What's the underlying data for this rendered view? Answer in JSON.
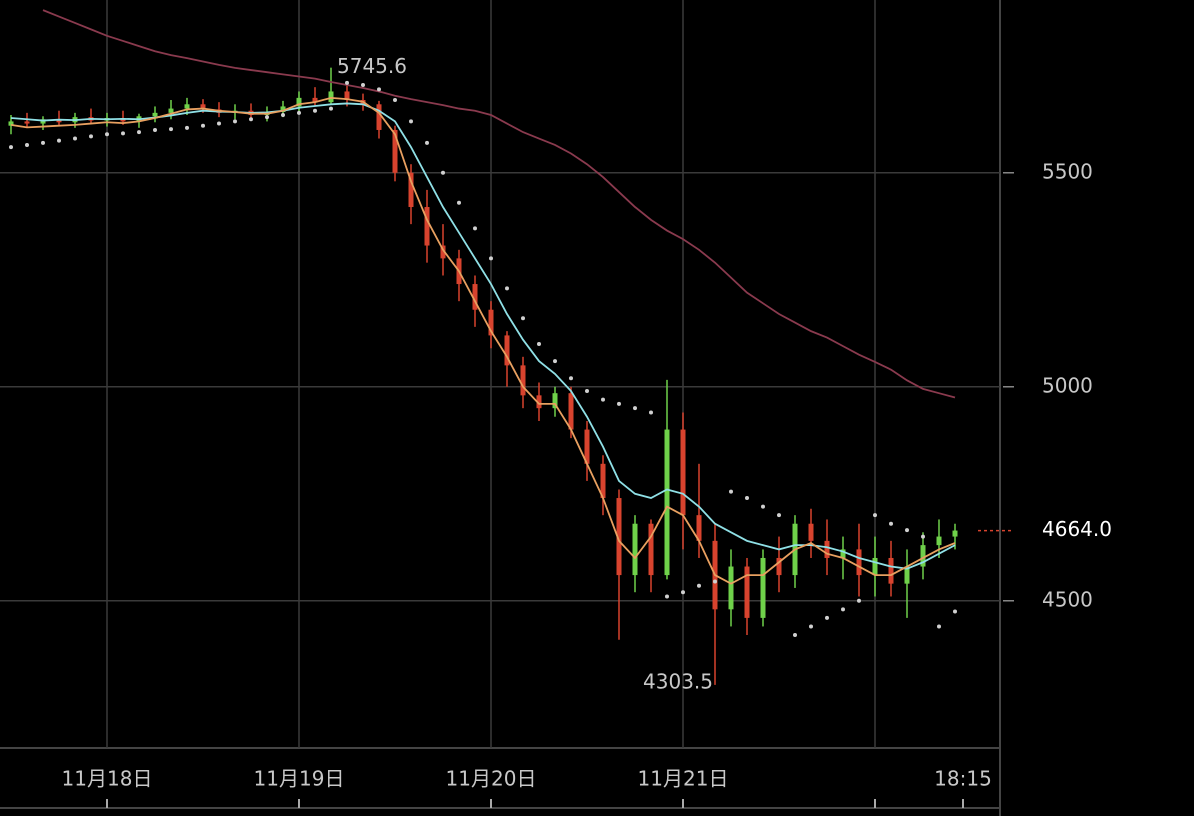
{
  "chart_data": {
    "type": "candlestick",
    "x": [
      -12,
      -10,
      -8,
      -6,
      -4,
      -2,
      0,
      2,
      4,
      6,
      8,
      10,
      12,
      14,
      16,
      18,
      20,
      22,
      24,
      26,
      28,
      30,
      32,
      34,
      36,
      38,
      40,
      42,
      44,
      46,
      48,
      50,
      52,
      54,
      56,
      58,
      60,
      62,
      64,
      66,
      68,
      70,
      72,
      74,
      76,
      78,
      80,
      82,
      84,
      86,
      88,
      90,
      92,
      94,
      96,
      98,
      100,
      102,
      104,
      106
    ],
    "open": [
      5610,
      5620,
      5615,
      5625,
      5618,
      5630,
      5622,
      5628,
      5620,
      5632,
      5640,
      5650,
      5660,
      5648,
      5640,
      5645,
      5635,
      5642,
      5655,
      5675,
      5665,
      5690,
      5670,
      5660,
      5600,
      5500,
      5420,
      5330,
      5300,
      5240,
      5180,
      5120,
      5050,
      4980,
      4950,
      4985,
      4900,
      4820,
      4740,
      4560,
      4680,
      4560,
      4900,
      4700,
      4640,
      4480,
      4580,
      4460,
      4600,
      4560,
      4680,
      4640,
      4600,
      4620,
      4560,
      4600,
      4540,
      4580,
      4630,
      4650
    ],
    "high": [
      5635,
      5640,
      5632,
      5645,
      5640,
      5650,
      5640,
      5645,
      5638,
      5655,
      5670,
      5675,
      5672,
      5665,
      5660,
      5662,
      5655,
      5668,
      5690,
      5700,
      5745.6,
      5705,
      5685,
      5668,
      5610,
      5520,
      5460,
      5380,
      5320,
      5260,
      5200,
      5130,
      5070,
      5010,
      5000,
      5000,
      4920,
      4840,
      4760,
      4700,
      4690,
      5016,
      4940,
      4820,
      4680,
      4620,
      4600,
      4620,
      4650,
      4700,
      4715,
      4690,
      4650,
      4680,
      4650,
      4640,
      4620,
      4660,
      4690,
      4680
    ],
    "low": [
      5590,
      5605,
      5600,
      5610,
      5605,
      5615,
      5608,
      5612,
      5605,
      5618,
      5625,
      5635,
      5640,
      5630,
      5625,
      5628,
      5620,
      5630,
      5640,
      5655,
      5660,
      5655,
      5645,
      5580,
      5480,
      5380,
      5290,
      5260,
      5200,
      5140,
      5090,
      5000,
      4950,
      4920,
      4930,
      4880,
      4780,
      4700,
      4409,
      4520,
      4520,
      4550,
      4620,
      4600,
      4303.5,
      4440,
      4420,
      4440,
      4520,
      4530,
      4600,
      4560,
      4550,
      4510,
      4510,
      4510,
      4460,
      4550,
      4600,
      4620
    ],
    "close": [
      5620,
      5615,
      5625,
      5618,
      5630,
      5622,
      5628,
      5620,
      5632,
      5640,
      5650,
      5660,
      5648,
      5640,
      5645,
      5635,
      5642,
      5655,
      5675,
      5665,
      5690,
      5670,
      5660,
      5600,
      5500,
      5420,
      5330,
      5300,
      5240,
      5180,
      5120,
      5050,
      4980,
      4950,
      4985,
      4900,
      4820,
      4740,
      4560,
      4680,
      4560,
      4900,
      4700,
      4640,
      4480,
      4580,
      4460,
      4600,
      4560,
      4680,
      4640,
      4600,
      4620,
      4560,
      4600,
      4540,
      4580,
      4630,
      4650,
      4664
    ],
    "up_color": "#6fd14a",
    "down_color": "#d8432e",
    "series": [
      {
        "color": "#8a3a4e",
        "style": "line",
        "values": [
          null,
          null,
          5880,
          5865,
          5850,
          5835,
          5820,
          5808,
          5796,
          5784,
          5775,
          5768,
          5760,
          5752,
          5745,
          5740,
          5735,
          5730,
          5725,
          5720,
          5712,
          5705,
          5698,
          5690,
          5680,
          5672,
          5665,
          5658,
          5650,
          5645,
          5635,
          5615,
          5595,
          5580,
          5565,
          5545,
          5520,
          5490,
          5455,
          5420,
          5390,
          5365,
          5345,
          5320,
          5290,
          5255,
          5220,
          5195,
          5170,
          5150,
          5130,
          5115,
          5095,
          5075,
          5058,
          5040,
          5015,
          4995,
          4985,
          4975
        ]
      },
      {
        "color": "#8fe0e6",
        "style": "line",
        "values": [
          5628,
          5625,
          5622,
          5624,
          5623,
          5626,
          5625,
          5626,
          5625,
          5629,
          5634,
          5640,
          5645,
          5643,
          5642,
          5640,
          5641,
          5645,
          5652,
          5656,
          5660,
          5662,
          5660,
          5645,
          5620,
          5560,
          5490,
          5420,
          5360,
          5300,
          5240,
          5170,
          5110,
          5060,
          5030,
          4990,
          4930,
          4860,
          4780,
          4750,
          4740,
          4760,
          4750,
          4720,
          4680,
          4660,
          4640,
          4630,
          4620,
          4630,
          4630,
          4625,
          4615,
          4600,
          4590,
          4580,
          4575,
          4590,
          4610,
          4630
        ]
      },
      {
        "color": "#e8a060",
        "style": "line",
        "values": [
          5612,
          5606,
          5608,
          5610,
          5612,
          5615,
          5618,
          5616,
          5620,
          5628,
          5638,
          5648,
          5650,
          5645,
          5642,
          5638,
          5638,
          5645,
          5660,
          5665,
          5675,
          5672,
          5666,
          5640,
          5590,
          5480,
          5390,
          5320,
          5270,
          5200,
          5130,
          5070,
          5000,
          4960,
          4960,
          4900,
          4820,
          4740,
          4640,
          4600,
          4650,
          4720,
          4700,
          4640,
          4560,
          4540,
          4560,
          4560,
          4590,
          4620,
          4635,
          4610,
          4600,
          4580,
          4560,
          4560,
          4580,
          4600,
          4620,
          4635
        ]
      },
      {
        "color": "#d0d0d0",
        "style": "dots",
        "values": [
          5560,
          5565,
          5570,
          5575,
          5580,
          5585,
          5590,
          5592,
          5595,
          5600,
          5602,
          5605,
          5610,
          5615,
          5620,
          5625,
          5630,
          5635,
          5640,
          5645,
          5650,
          5710,
          5705,
          5695,
          5670,
          5620,
          5570,
          5500,
          5430,
          5370,
          5300,
          5230,
          5160,
          5100,
          5060,
          5020,
          4990,
          4970,
          4960,
          4950,
          4940,
          4510,
          4520,
          4535,
          4545,
          4755,
          4740,
          4720,
          4700,
          4420,
          4440,
          4460,
          4480,
          4500,
          4700,
          4680,
          4665,
          4650,
          4440,
          4475
        ]
      }
    ],
    "last_price": {
      "value": 4664,
      "label": "4664.0"
    },
    "xlim": [
      -13.375,
      111.625
    ],
    "xticks": [
      {
        "value": 0,
        "label": "11月18日"
      },
      {
        "value": 24,
        "label": "11月19日"
      },
      {
        "value": 48,
        "label": "11月20日"
      },
      {
        "value": 72,
        "label": "11月21日"
      },
      {
        "value": 96,
        "label": null
      },
      {
        "value": 107,
        "label": "18:15"
      }
    ],
    "ylim": [
      4156,
      5892
    ],
    "yticks": [
      4500,
      5000,
      5500
    ],
    "grid": true
  }
}
